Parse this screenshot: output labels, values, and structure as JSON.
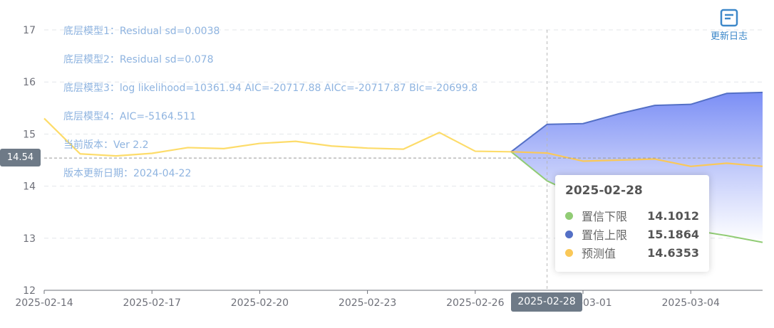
{
  "changelog": {
    "label": "更新日志",
    "icon": "document-icon"
  },
  "notes": [
    "底层模型1：Residual sd=0.0038",
    "底层模型2：Residual sd=0.078",
    "底层模型3：log likelihood=10361.94 AIC=-20717.88 AICc=-20717.87 BIc=-20699.8",
    "底层模型4：AIC=-5164.511",
    "当前版本：Ver 2.2",
    "版本更新日期：2024-04-22"
  ],
  "axis_pointer": {
    "y_label": "14.54",
    "x_label": "2025-02-28"
  },
  "tooltip": {
    "title": "2025-02-28",
    "rows": [
      {
        "name": "置信下限",
        "value": "14.1012",
        "color": "#91cc75"
      },
      {
        "name": "置信上限",
        "value": "15.1864",
        "color": "#5470c6"
      },
      {
        "name": "预测值",
        "value": "14.6353",
        "color": "#fac858"
      }
    ]
  },
  "colors": {
    "history": "#fddc6a",
    "forecast": "#fac858",
    "lower": "#91cc75",
    "upper": "#5470c6",
    "band_top": "#7b8ef5",
    "band_bottom": "#ffffff"
  },
  "chart_data": {
    "type": "line",
    "x": [
      "2025-02-14",
      "2025-02-15",
      "2025-02-16",
      "2025-02-17",
      "2025-02-18",
      "2025-02-19",
      "2025-02-20",
      "2025-02-21",
      "2025-02-22",
      "2025-02-23",
      "2025-02-24",
      "2025-02-25",
      "2025-02-26",
      "2025-02-27",
      "2025-02-28",
      "2025-03-01",
      "2025-03-02",
      "2025-03-03",
      "2025-03-04",
      "2025-03-05",
      "2025-03-06"
    ],
    "x_tick_labels": [
      "2025-02-14",
      "2025-02-17",
      "2025-02-20",
      "2025-02-23",
      "2025-02-26",
      "2025-03-01",
      "2025-03-04"
    ],
    "ylim": [
      12,
      17
    ],
    "y_ticks": [
      12,
      13,
      14,
      15,
      16,
      17
    ],
    "grid": true,
    "series": [
      {
        "key": "history",
        "values": [
          15.3,
          14.62,
          14.58,
          14.63,
          14.74,
          14.72,
          14.82,
          14.86,
          14.77,
          14.73,
          14.71,
          15.03,
          14.67,
          14.66,
          null,
          null,
          null,
          null,
          null,
          null,
          null
        ]
      },
      {
        "name": "预测值",
        "key": "forecast",
        "values": [
          null,
          null,
          null,
          null,
          null,
          null,
          null,
          null,
          null,
          null,
          null,
          null,
          null,
          14.66,
          14.6353,
          14.48,
          14.5,
          14.52,
          14.38,
          14.44,
          14.38
        ]
      },
      {
        "name": "置信下限",
        "key": "lower",
        "values": [
          null,
          null,
          null,
          null,
          null,
          null,
          null,
          null,
          null,
          null,
          null,
          null,
          null,
          14.66,
          14.1012,
          13.78,
          13.62,
          13.45,
          13.16,
          13.05,
          12.92
        ]
      },
      {
        "name": "置信上限",
        "key": "upper",
        "values": [
          null,
          null,
          null,
          null,
          null,
          null,
          null,
          null,
          null,
          null,
          null,
          null,
          null,
          14.66,
          15.1864,
          15.2,
          15.39,
          15.55,
          15.57,
          15.78,
          15.8
        ]
      }
    ],
    "hover_index": 14,
    "pointer_y": 14.54
  }
}
